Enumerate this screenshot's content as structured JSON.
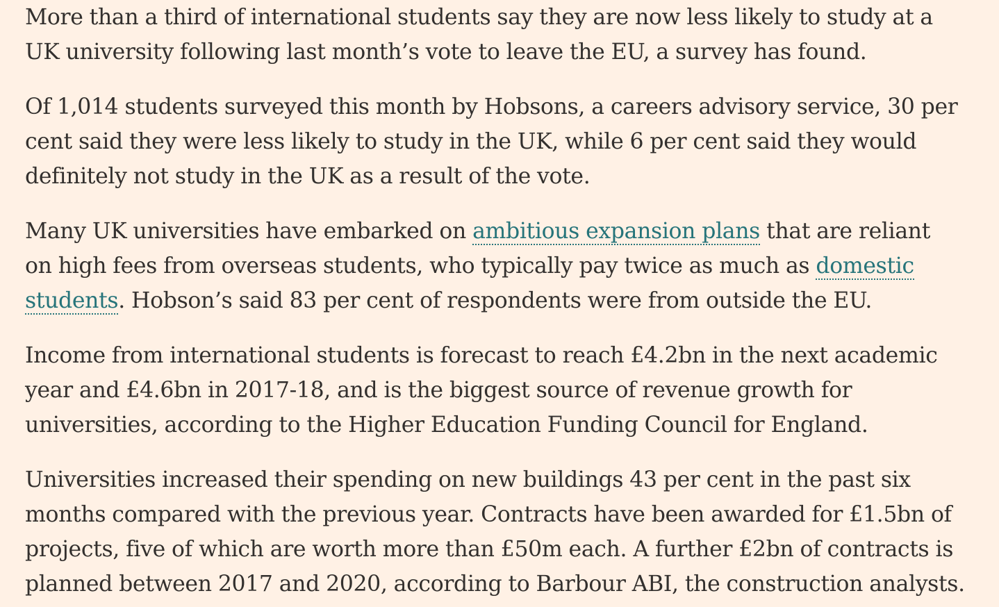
{
  "article": {
    "p1": {
      "l1": "More than a third of international students say they are now less likely to study at a",
      "l2": "UK university following last month’s vote to leave the EU, a survey has found."
    },
    "p2": {
      "l1": "Of 1,014 students surveyed this month by Hobsons, a careers advisory service, 30 per",
      "l2": "cent said they were less likely to study in the UK, while 6 per cent said they would",
      "l3": "definitely not study in the UK as a result of the vote."
    },
    "p3": {
      "l1_before": "Many UK universities have embarked on ",
      "link_expansion": "ambitious expansion plans",
      "l1_after": " that are reliant",
      "l2_before": "on high fees from overseas students, who typically pay twice as much as ",
      "link_domestic_1": "domestic",
      "link_domestic_2": "students",
      "l3_after": ". Hobson’s said 83 per cent of respondents were from outside the EU."
    },
    "p4": {
      "l1": "Income from international students is forecast to reach £4.2bn in the next academic",
      "l2": "year and £4.6bn in 2017-18, and is the biggest source of revenue growth for",
      "l3": "universities, according to the Higher Education Funding Council for England."
    },
    "p5": {
      "l1": "Universities increased their spending on new buildings 43 per cent in the past six",
      "l2": "months compared with the previous year. Contracts have been awarded for £1.5bn of",
      "l3": "projects, five of which are worth more than £50m each. A further £2bn of contracts is",
      "l4": "planned between 2017 and 2020, according to Barbour ABI, the construction analysts."
    }
  },
  "colors": {
    "background": "#fff1e5",
    "text": "#33302e",
    "link": "#26747a"
  }
}
